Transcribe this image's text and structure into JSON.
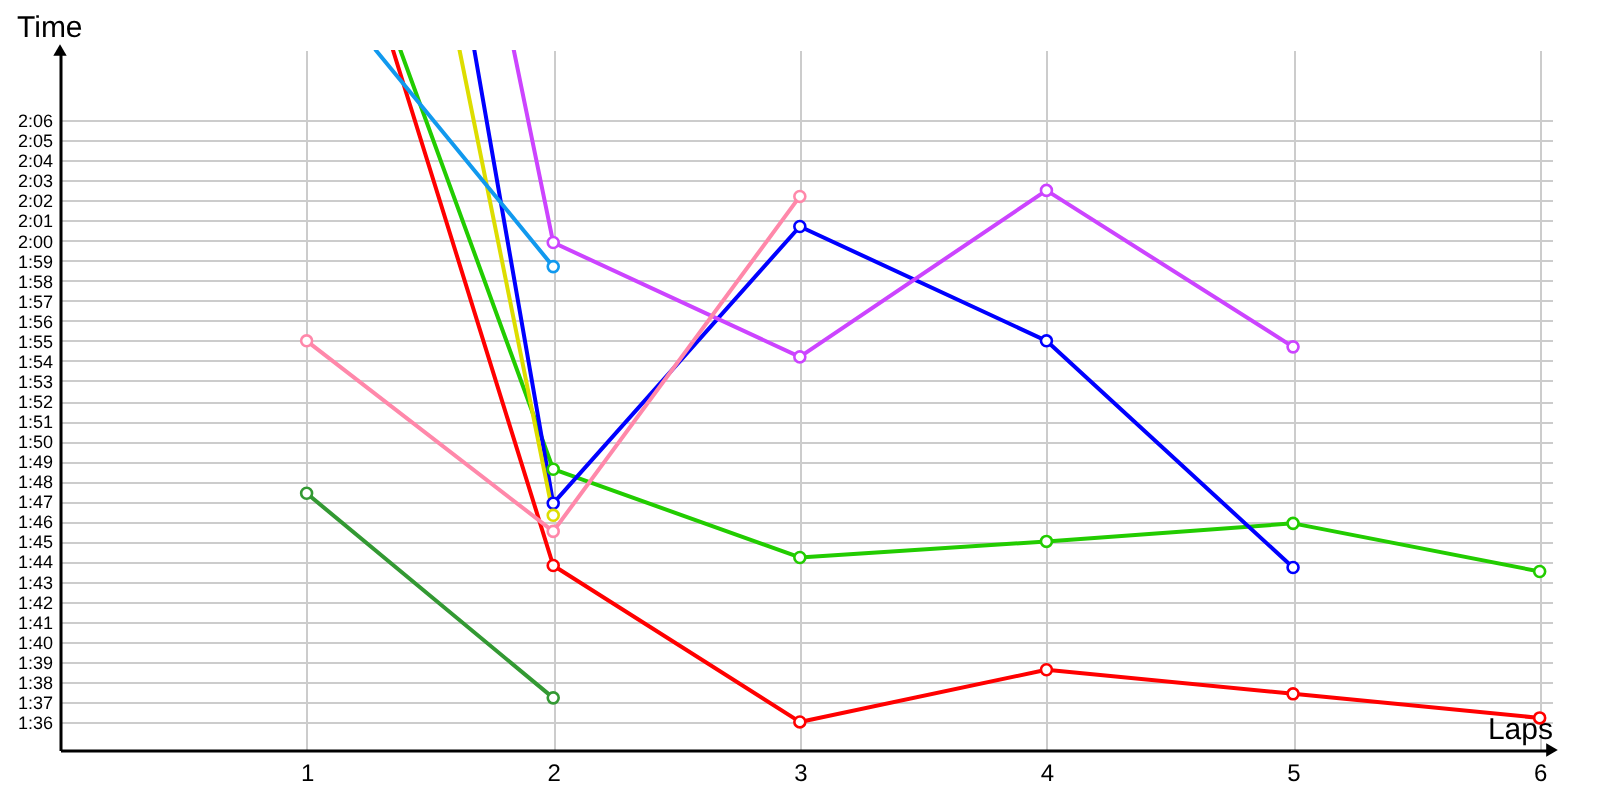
{
  "chart_data": {
    "type": "line",
    "xlabel": "Laps",
    "ylabel": "Time",
    "xlim": [
      0,
      6.05
    ],
    "ylim": [
      94.6,
      129.5
    ],
    "xticks": [
      1,
      2,
      3,
      4,
      5,
      6
    ],
    "yticks": [
      {
        "value": 96,
        "label": "1:36"
      },
      {
        "value": 97,
        "label": "1:37"
      },
      {
        "value": 98,
        "label": "1:38"
      },
      {
        "value": 99,
        "label": "1:39"
      },
      {
        "value": 100,
        "label": "1:40"
      },
      {
        "value": 101,
        "label": "1:41"
      },
      {
        "value": 102,
        "label": "1:42"
      },
      {
        "value": 103,
        "label": "1:43"
      },
      {
        "value": 104,
        "label": "1:44"
      },
      {
        "value": 105,
        "label": "1:45"
      },
      {
        "value": 106,
        "label": "1:46"
      },
      {
        "value": 107,
        "label": "1:47"
      },
      {
        "value": 108,
        "label": "1:48"
      },
      {
        "value": 109,
        "label": "1:49"
      },
      {
        "value": 110,
        "label": "1:50"
      },
      {
        "value": 111,
        "label": "1:51"
      },
      {
        "value": 112,
        "label": "1:52"
      },
      {
        "value": 113,
        "label": "1:53"
      },
      {
        "value": 114,
        "label": "1:54"
      },
      {
        "value": 115,
        "label": "1:55"
      },
      {
        "value": 116,
        "label": "1:56"
      },
      {
        "value": 117,
        "label": "1:57"
      },
      {
        "value": 118,
        "label": "1:58"
      },
      {
        "value": 119,
        "label": "1:59"
      },
      {
        "value": 120,
        "label": "2:00"
      },
      {
        "value": 121,
        "label": "2:01"
      },
      {
        "value": 122,
        "label": "2:02"
      },
      {
        "value": 123,
        "label": "2:03"
      },
      {
        "value": 124,
        "label": "2:04"
      },
      {
        "value": 125,
        "label": "2:05"
      },
      {
        "value": 126,
        "label": "2:06"
      }
    ],
    "grid": true,
    "marker": "circle",
    "line_style": "solid",
    "series": [
      {
        "color": "#ff0000",
        "x": [
          1.35,
          2,
          3,
          4,
          5,
          6
        ],
        "values": [
          129.5,
          103.8,
          96.0,
          98.6,
          97.4,
          96.2
        ]
      },
      {
        "color": "#22cc00",
        "x": [
          1.38,
          2,
          3,
          4,
          5,
          6
        ],
        "values": [
          129.5,
          108.6,
          104.2,
          105.0,
          105.9,
          103.5
        ]
      },
      {
        "color": "#0000ff",
        "x": [
          1.68,
          2,
          3,
          4,
          5
        ],
        "values": [
          129.5,
          106.9,
          120.7,
          115.0,
          103.7
        ]
      },
      {
        "color": "#cc44ff",
        "x": [
          1.84,
          2,
          3,
          4,
          5
        ],
        "values": [
          129.5,
          119.9,
          114.2,
          122.5,
          114.7
        ]
      },
      {
        "color": "#dddd00",
        "x": [
          1.62,
          2
        ],
        "values": [
          129.5,
          106.3
        ]
      },
      {
        "color": "#1199ee",
        "x": [
          1.28,
          2
        ],
        "values": [
          129.5,
          118.7
        ]
      },
      {
        "color": "#ff88aa",
        "x": [
          1,
          2,
          3
        ],
        "values": [
          115.0,
          105.5,
          122.2
        ]
      },
      {
        "color": "#339933",
        "x": [
          1,
          2
        ],
        "values": [
          107.4,
          97.2
        ]
      }
    ]
  }
}
